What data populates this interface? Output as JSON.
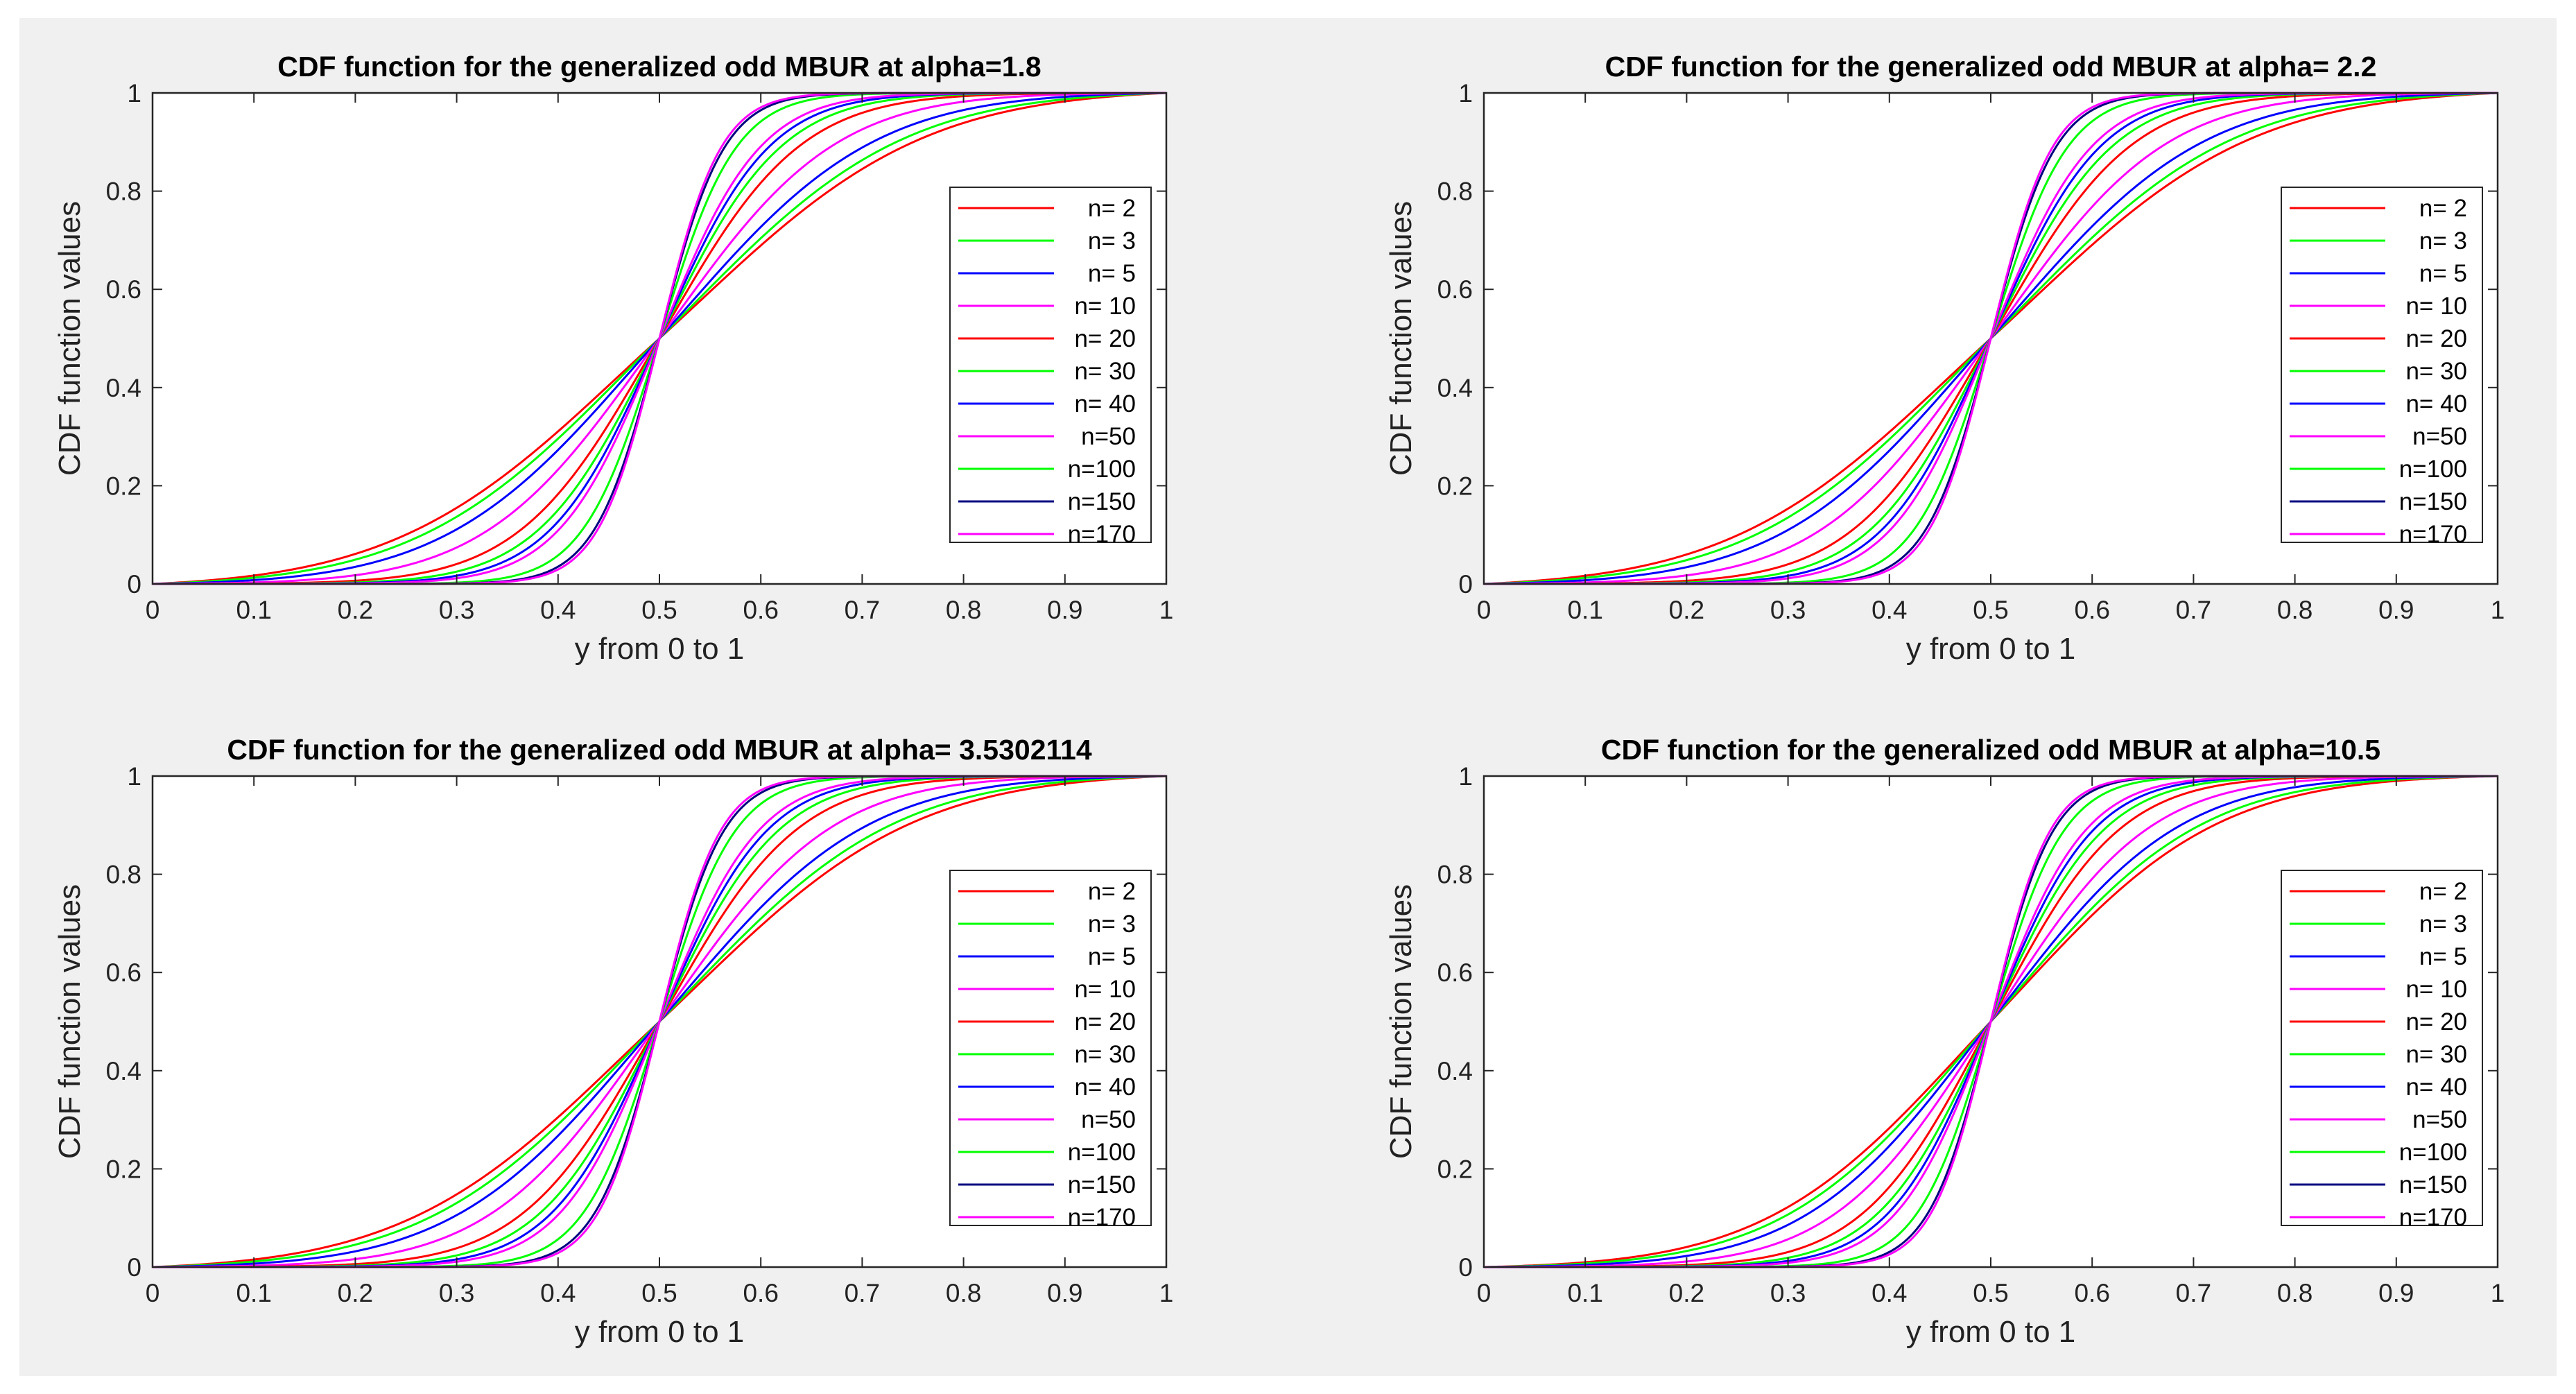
{
  "colors": {
    "figure_background": "#f0f0f0",
    "axes_background": "#ffffff",
    "axes_edge": "#262626",
    "series_cycle": [
      "#ff0000",
      "#00ff00",
      "#0000ff",
      "#ff00ff"
    ],
    "n150_color": "#000080"
  },
  "chart_data": [
    {
      "type": "line",
      "title": "CDF function for the generalized odd MBUR at alpha=1.8",
      "alpha": 1.8,
      "xlabel": "y from 0 to 1",
      "ylabel": "CDF function values",
      "xlim": [
        0,
        1
      ],
      "ylim": [
        0,
        1
      ],
      "xticks": [
        "0",
        "0.1",
        "0.2",
        "0.3",
        "0.4",
        "0.5",
        "0.6",
        "0.7",
        "0.8",
        "0.9",
        "1"
      ],
      "yticks": [
        "0",
        "0.2",
        "0.4",
        "0.6",
        "0.8",
        "1"
      ],
      "grid": false,
      "legend_position": "right",
      "series": [
        {
          "name": "n= 2",
          "n": 2,
          "color": "#ff0000"
        },
        {
          "name": "n= 3",
          "n": 3,
          "color": "#00ff00"
        },
        {
          "name": "n= 5",
          "n": 5,
          "color": "#0000ff"
        },
        {
          "name": "n= 10",
          "n": 10,
          "color": "#ff00ff"
        },
        {
          "name": "n= 20",
          "n": 20,
          "color": "#ff0000"
        },
        {
          "name": "n= 30",
          "n": 30,
          "color": "#00ff00"
        },
        {
          "name": "n= 40",
          "n": 40,
          "color": "#0000ff"
        },
        {
          "name": "n=50",
          "n": 50,
          "color": "#ff00ff"
        },
        {
          "name": "n=100",
          "n": 100,
          "color": "#00ff00"
        },
        {
          "name": "n=150",
          "n": 150,
          "color": "#000080"
        },
        {
          "name": "n=170",
          "n": 170,
          "color": "#ff00ff"
        }
      ]
    },
    {
      "type": "line",
      "title": "CDF function for the generalized odd MBUR at alpha=  2.2",
      "alpha": 2.2,
      "xlabel": "y from 0 to 1",
      "ylabel": "CDF function values",
      "xlim": [
        0,
        1
      ],
      "ylim": [
        0,
        1
      ],
      "xticks": [
        "0",
        "0.1",
        "0.2",
        "0.3",
        "0.4",
        "0.5",
        "0.6",
        "0.7",
        "0.8",
        "0.9",
        "1"
      ],
      "yticks": [
        "0",
        "0.2",
        "0.4",
        "0.6",
        "0.8",
        "1"
      ],
      "grid": false,
      "legend_position": "right",
      "series": [
        {
          "name": "n= 2",
          "n": 2,
          "color": "#ff0000"
        },
        {
          "name": "n= 3",
          "n": 3,
          "color": "#00ff00"
        },
        {
          "name": "n= 5",
          "n": 5,
          "color": "#0000ff"
        },
        {
          "name": "n= 10",
          "n": 10,
          "color": "#ff00ff"
        },
        {
          "name": "n= 20",
          "n": 20,
          "color": "#ff0000"
        },
        {
          "name": "n= 30",
          "n": 30,
          "color": "#00ff00"
        },
        {
          "name": "n= 40",
          "n": 40,
          "color": "#0000ff"
        },
        {
          "name": "n=50",
          "n": 50,
          "color": "#ff00ff"
        },
        {
          "name": "n=100",
          "n": 100,
          "color": "#00ff00"
        },
        {
          "name": "n=150",
          "n": 150,
          "color": "#000080"
        },
        {
          "name": "n=170",
          "n": 170,
          "color": "#ff00ff"
        }
      ]
    },
    {
      "type": "line",
      "title": "CDF function for the generalized odd MBUR at alpha= 3.5302114",
      "alpha": 3.5302114,
      "xlabel": "y from 0 to 1",
      "ylabel": "CDF function values",
      "xlim": [
        0,
        1
      ],
      "ylim": [
        0,
        1
      ],
      "xticks": [
        "0",
        "0.1",
        "0.2",
        "0.3",
        "0.4",
        "0.5",
        "0.6",
        "0.7",
        "0.8",
        "0.9",
        "1"
      ],
      "yticks": [
        "0",
        "0.2",
        "0.4",
        "0.6",
        "0.8",
        "1"
      ],
      "grid": false,
      "legend_position": "right",
      "series": [
        {
          "name": "n= 2",
          "n": 2,
          "color": "#ff0000"
        },
        {
          "name": "n= 3",
          "n": 3,
          "color": "#00ff00"
        },
        {
          "name": "n= 5",
          "n": 5,
          "color": "#0000ff"
        },
        {
          "name": "n= 10",
          "n": 10,
          "color": "#ff00ff"
        },
        {
          "name": "n= 20",
          "n": 20,
          "color": "#ff0000"
        },
        {
          "name": "n= 30",
          "n": 30,
          "color": "#00ff00"
        },
        {
          "name": "n= 40",
          "n": 40,
          "color": "#0000ff"
        },
        {
          "name": "n=50",
          "n": 50,
          "color": "#ff00ff"
        },
        {
          "name": "n=100",
          "n": 100,
          "color": "#00ff00"
        },
        {
          "name": "n=150",
          "n": 150,
          "color": "#000080"
        },
        {
          "name": "n=170",
          "n": 170,
          "color": "#ff00ff"
        }
      ]
    },
    {
      "type": "line",
      "title": "CDF function for the generalized odd MBUR at alpha=10.5",
      "alpha": 10.5,
      "xlabel": "y from 0 to 1",
      "ylabel": "CDF function values",
      "xlim": [
        0,
        1
      ],
      "ylim": [
        0,
        1
      ],
      "xticks": [
        "0",
        "0.1",
        "0.2",
        "0.3",
        "0.4",
        "0.5",
        "0.6",
        "0.7",
        "0.8",
        "0.9",
        "1"
      ],
      "yticks": [
        "0",
        "0.2",
        "0.4",
        "0.6",
        "0.8",
        "1"
      ],
      "grid": false,
      "legend_position": "right",
      "series": [
        {
          "name": "n= 2",
          "n": 2,
          "color": "#ff0000"
        },
        {
          "name": "n= 3",
          "n": 3,
          "color": "#00ff00"
        },
        {
          "name": "n= 5",
          "n": 5,
          "color": "#0000ff"
        },
        {
          "name": "n= 10",
          "n": 10,
          "color": "#ff00ff"
        },
        {
          "name": "n= 20",
          "n": 20,
          "color": "#ff0000"
        },
        {
          "name": "n= 30",
          "n": 30,
          "color": "#00ff00"
        },
        {
          "name": "n= 40",
          "n": 40,
          "color": "#0000ff"
        },
        {
          "name": "n=50",
          "n": 50,
          "color": "#ff00ff"
        },
        {
          "name": "n=100",
          "n": 100,
          "color": "#00ff00"
        },
        {
          "name": "n=150",
          "n": 150,
          "color": "#000080"
        },
        {
          "name": "n=170",
          "n": 170,
          "color": "#ff00ff"
        }
      ]
    }
  ]
}
